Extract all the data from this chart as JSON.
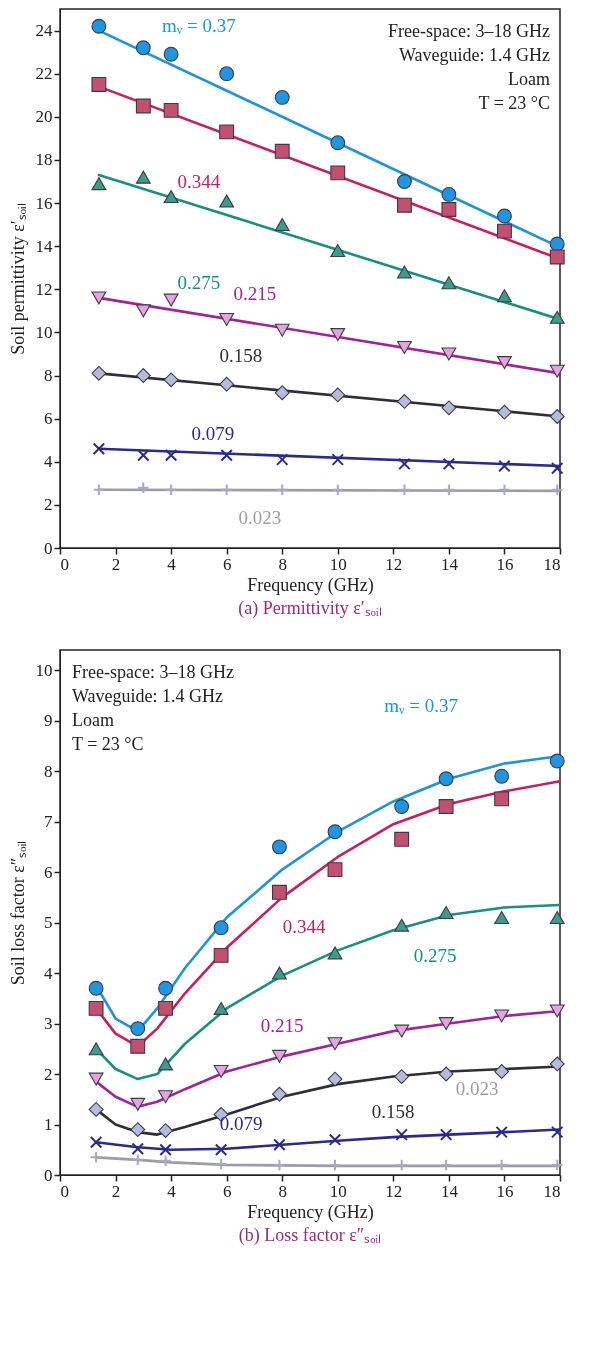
{
  "chart_data": [
    {
      "type": "scatter",
      "title": "(a) Permittivity ε′ₛₒᵢₗ",
      "xlabel": "Frequency (GHz)",
      "ylabel": "Soil permittivity ε′ₛₒᵢₗ",
      "xlim": [
        0,
        18
      ],
      "xticks": [
        0,
        2,
        4,
        6,
        8,
        10,
        12,
        14,
        16,
        18
      ],
      "ylim": [
        0,
        25
      ],
      "yticks": [
        0,
        2,
        4,
        6,
        8,
        10,
        12,
        14,
        16,
        18,
        20,
        22,
        24
      ],
      "grid": false,
      "annotations": [
        "Free-space: 3–18 GHz",
        "Waveguide: 1.4 GHz",
        "Loam",
        "T = 23 °C"
      ],
      "series": [
        {
          "type": "line",
          "name": "mᵥ = 0.37",
          "color": "#1f93dc",
          "x": [
            1.4,
            17.9
          ],
          "values": [
            24.0,
            14.0
          ]
        },
        {
          "type": "line",
          "name": "0.344",
          "color": "#cc1c5c",
          "x": [
            1.4,
            18
          ],
          "values": [
            21.4,
            13.4
          ]
        },
        {
          "type": "line",
          "name": "0.275",
          "color": "#17907f",
          "x": [
            1.4,
            18
          ],
          "values": [
            17.3,
            10.6
          ]
        },
        {
          "type": "line",
          "name": "0.215",
          "color": "#a1229b",
          "x": [
            1.4,
            18
          ],
          "values": [
            11.6,
            8.1
          ]
        },
        {
          "type": "line",
          "name": "0.158",
          "color": "#2e2e35",
          "x": [
            1.4,
            18
          ],
          "values": [
            8.1,
            6.1
          ]
        },
        {
          "type": "line",
          "name": "0.079",
          "color": "#2b2a8c",
          "x": [
            1.4,
            18
          ],
          "values": [
            4.6,
            3.8
          ]
        },
        {
          "type": "line",
          "name": "0.023",
          "color": "#9c9ca6",
          "x": [
            1.4,
            18
          ],
          "values": [
            2.7,
            2.65
          ]
        },
        {
          "color": "#2196e0",
          "marker": "circle",
          "x": [
            1.4,
            3,
            4,
            6,
            8,
            10,
            12.4,
            14,
            16,
            17.9
          ],
          "values": [
            24.2,
            23.2,
            22.9,
            22.0,
            20.9,
            18.8,
            17.0,
            16.4,
            15.4,
            14.1
          ]
        },
        {
          "type": "scatter",
          "color": "#c4506f",
          "marker": "square",
          "x": [
            1.4,
            3,
            4,
            6,
            8,
            10,
            12.4,
            14,
            16,
            17.9
          ],
          "values": [
            21.5,
            20.5,
            20.3,
            19.3,
            18.4,
            17.4,
            15.9,
            15.7,
            14.7,
            13.5
          ]
        },
        {
          "type": "scatter",
          "color": "#3c9c88",
          "marker": "triangle",
          "x": [
            1.4,
            3,
            4,
            6,
            8,
            10,
            12.4,
            14,
            16,
            17.9
          ],
          "values": [
            16.9,
            17.2,
            16.3,
            16.1,
            15.0,
            13.8,
            12.8,
            12.3,
            11.7,
            10.7
          ]
        },
        {
          "type": "scatter",
          "color": "#e4a4e0",
          "marker": "triangle-down",
          "x": [
            1.4,
            3,
            4,
            6,
            8,
            10,
            12.4,
            14,
            16,
            17.9
          ],
          "values": [
            11.6,
            11.0,
            11.5,
            10.6,
            10.1,
            9.9,
            9.3,
            9.0,
            8.6,
            8.2
          ]
        },
        {
          "type": "scatter",
          "color": "#b6bbdc",
          "marker": "diamond",
          "x": [
            1.4,
            3,
            4,
            6,
            8,
            10,
            12.4,
            14,
            16,
            17.9
          ],
          "values": [
            8.1,
            8.0,
            7.8,
            7.6,
            7.2,
            7.1,
            6.8,
            6.5,
            6.3,
            6.1
          ]
        },
        {
          "type": "scatter",
          "color": "#2b2a8c",
          "marker": "cross",
          "x": [
            1.4,
            3,
            4,
            6,
            8,
            10,
            12.4,
            14,
            16,
            17.9
          ],
          "values": [
            4.6,
            4.3,
            4.3,
            4.3,
            4.1,
            4.1,
            3.9,
            3.9,
            3.8,
            3.7
          ]
        },
        {
          "type": "scatter",
          "color": "#a8a8c4",
          "marker": "plus",
          "x": [
            1.4,
            3,
            4,
            6,
            8,
            10,
            12.4,
            14,
            16,
            17.9
          ],
          "values": [
            2.7,
            2.8,
            2.7,
            2.7,
            2.7,
            2.7,
            2.7,
            2.7,
            2.7,
            2.7
          ]
        }
      ]
    },
    {
      "type": "scatter",
      "title": "(b) Loss factor ε″ₛₒᵢₗ",
      "xlabel": "Frequency (GHz)",
      "ylabel": "Soil loss factor ε″ₛₒᵢₗ",
      "xlim": [
        0,
        18
      ],
      "xticks": [
        0,
        2,
        4,
        6,
        8,
        10,
        12,
        14,
        16,
        18
      ],
      "ylim": [
        0,
        10.4
      ],
      "yticks": [
        0,
        1,
        2,
        3,
        4,
        5,
        6,
        7,
        8,
        9,
        10
      ],
      "grid": false,
      "annotations": [
        "Free-space: 3–18 GHz",
        "Waveguide: 1.4 GHz",
        "Loam",
        "T = 23 °C"
      ],
      "series": [
        {
          "type": "line",
          "name": "mᵥ = 0.37",
          "color": "#1f93dc",
          "x": [
            1.3,
            2,
            2.8,
            3.5,
            4.5,
            6,
            8,
            10,
            12,
            14,
            16,
            18
          ],
          "values": [
            3.75,
            3.1,
            2.85,
            3.3,
            4.1,
            5.1,
            6.05,
            6.8,
            7.4,
            7.85,
            8.15,
            8.3
          ]
        },
        {
          "type": "line",
          "name": "0.344",
          "color": "#cc1c5c",
          "x": [
            1.3,
            2,
            2.8,
            3.5,
            4.5,
            6,
            8,
            10,
            12,
            14,
            16,
            18
          ],
          "values": [
            3.3,
            2.8,
            2.55,
            2.9,
            3.6,
            4.5,
            5.5,
            6.3,
            6.95,
            7.35,
            7.6,
            7.8
          ]
        },
        {
          "type": "line",
          "name": "0.275",
          "color": "#17907f",
          "x": [
            1.3,
            2,
            2.8,
            3.5,
            4.5,
            6,
            8,
            10,
            12,
            14,
            16,
            18
          ],
          "values": [
            2.5,
            2.1,
            1.9,
            2.0,
            2.6,
            3.3,
            3.95,
            4.45,
            4.85,
            5.15,
            5.3,
            5.35
          ]
        },
        {
          "type": "line",
          "name": "0.215",
          "color": "#a1229b",
          "x": [
            1.3,
            2,
            2.8,
            3.5,
            4.5,
            6,
            8,
            10,
            12,
            14,
            16,
            18
          ],
          "values": [
            1.85,
            1.55,
            1.35,
            1.45,
            1.7,
            2.05,
            2.35,
            2.6,
            2.85,
            3.0,
            3.15,
            3.25
          ]
        },
        {
          "type": "line",
          "name": "0.158",
          "color": "#2e2e35",
          "x": [
            1.3,
            2,
            2.8,
            3.5,
            4.5,
            6,
            8,
            10,
            12,
            14,
            16,
            18
          ],
          "values": [
            1.3,
            1.0,
            0.85,
            0.8,
            0.95,
            1.2,
            1.55,
            1.8,
            1.95,
            2.05,
            2.1,
            2.15
          ]
        },
        {
          "type": "line",
          "name": "0.079",
          "color": "#2b2a8c",
          "x": [
            1.3,
            2.8,
            4,
            6,
            8,
            10,
            12,
            14,
            16,
            18
          ],
          "values": [
            0.65,
            0.55,
            0.5,
            0.52,
            0.6,
            0.68,
            0.75,
            0.8,
            0.85,
            0.9
          ]
        },
        {
          "type": "line",
          "name": "0.023",
          "color": "#9c9ca6",
          "x": [
            1.3,
            2.8,
            4,
            6,
            10,
            18
          ],
          "values": [
            0.35,
            0.3,
            0.25,
            0.2,
            0.18,
            0.18
          ]
        },
        {
          "color": "#2196e0",
          "marker": "circle",
          "x": [
            1.3,
            2.8,
            3.8,
            5.8,
            7.9,
            9.9,
            12.3,
            13.9,
            15.9,
            17.9
          ],
          "values": [
            3.7,
            2.9,
            3.7,
            4.9,
            6.5,
            6.8,
            7.3,
            7.85,
            7.9,
            8.2
          ]
        },
        {
          "type": "scatter",
          "color": "#c4506f",
          "marker": "square",
          "x": [
            1.3,
            2.8,
            3.8,
            5.8,
            7.9,
            9.9,
            12.3,
            13.9,
            15.9
          ],
          "values": [
            3.3,
            2.55,
            3.3,
            4.35,
            5.6,
            6.05,
            6.65,
            7.3,
            7.45
          ]
        },
        {
          "type": "scatter",
          "color": "#3c9c88",
          "marker": "triangle",
          "x": [
            1.3,
            3.8,
            5.8,
            7.9,
            9.9,
            12.3,
            13.9,
            15.9,
            17.9
          ],
          "values": [
            2.5,
            2.2,
            3.3,
            4.0,
            4.4,
            4.95,
            5.2,
            5.1,
            5.1
          ]
        },
        {
          "type": "scatter",
          "color": "#e4a4e0",
          "marker": "triangle-down",
          "x": [
            1.3,
            2.8,
            3.8,
            5.8,
            7.9,
            9.9,
            12.3,
            13.9,
            15.9,
            17.9
          ],
          "values": [
            1.9,
            1.4,
            1.55,
            2.05,
            2.35,
            2.6,
            2.85,
            3.0,
            3.15,
            3.25
          ]
        },
        {
          "type": "scatter",
          "color": "#b6bbdc",
          "marker": "diamond",
          "x": [
            1.3,
            2.8,
            3.8,
            5.8,
            7.9,
            9.9,
            12.3,
            13.9,
            15.9,
            17.9
          ],
          "values": [
            1.3,
            0.9,
            0.88,
            1.2,
            1.6,
            1.9,
            1.95,
            2.0,
            2.05,
            2.2
          ]
        },
        {
          "type": "scatter",
          "color": "#2b2a8c",
          "marker": "cross",
          "x": [
            1.3,
            2.8,
            3.8,
            5.8,
            7.9,
            9.9,
            12.3,
            13.9,
            15.9,
            17.9
          ],
          "values": [
            0.65,
            0.52,
            0.5,
            0.5,
            0.6,
            0.7,
            0.8,
            0.8,
            0.85,
            0.85
          ]
        },
        {
          "type": "scatter",
          "color": "#a8a8c4",
          "marker": "plus",
          "x": [
            1.3,
            2.8,
            3.8,
            5.8,
            7.9,
            9.9,
            12.3,
            13.9,
            15.9,
            17.9
          ],
          "values": [
            0.35,
            0.3,
            0.28,
            0.22,
            0.2,
            0.2,
            0.2,
            0.2,
            0.2,
            0.2
          ]
        }
      ]
    }
  ]
}
